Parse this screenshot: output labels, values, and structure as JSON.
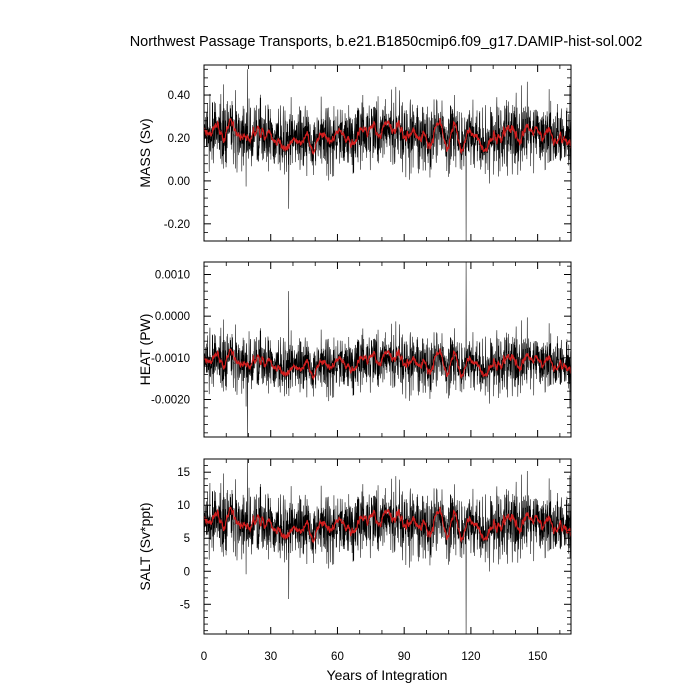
{
  "colors": {
    "series_monthly": "#000000",
    "series_smoothed": "#d21e1e",
    "axis": "#000000",
    "background": "#ffffff"
  },
  "chart_data": {
    "title": "Northwest Passage Transports, b.e21.B1850cmip6.f09_g17.DAMIP-hist-sol.002",
    "xlabel": "Years of Integration",
    "x_ticks": [
      0,
      30,
      60,
      90,
      120,
      150
    ],
    "xlim": [
      0,
      165
    ],
    "grid": false,
    "panels": [
      {
        "type": "line",
        "ylabel": "MASS (Sv)",
        "ylim": [
          -0.28,
          0.54
        ],
        "y_ticks": [
          -0.2,
          0.0,
          0.2,
          0.4
        ],
        "y_tick_labels": [
          "-0.20",
          "0.00",
          "0.20",
          "0.40"
        ],
        "baseline": 0.21,
        "noise_std": 0.075,
        "smooth_amplitude": 0.03,
        "spikes": [
          {
            "x": 117.8,
            "y": -0.28
          },
          {
            "x": 38.1,
            "y": -0.13
          },
          {
            "x": 19.6,
            "y": 0.52
          },
          {
            "x": 164.5,
            "y": 0.45
          }
        ]
      },
      {
        "type": "line",
        "ylabel": "HEAT (PW)",
        "ylim": [
          -0.0029,
          0.0013
        ],
        "y_ticks": [
          -0.002,
          -0.001,
          0.0,
          0.001
        ],
        "y_tick_labels": [
          "-0.0020",
          "-0.0010",
          "0.0000",
          "0.0010"
        ],
        "baseline": -0.00113,
        "noise_std": 0.00033,
        "smooth_amplitude": 0.00012,
        "spikes": [
          {
            "x": 117.8,
            "y": 0.0013
          },
          {
            "x": 38.1,
            "y": 0.0006
          },
          {
            "x": 19.6,
            "y": -0.0029
          },
          {
            "x": 164.5,
            "y": -0.0022
          }
        ]
      },
      {
        "type": "line",
        "ylabel": "SALT (Sv*ppt)",
        "ylim": [
          -9.5,
          17
        ],
        "y_ticks": [
          -5,
          0,
          5,
          10,
          15
        ],
        "y_tick_labels": [
          "-5",
          "0",
          "5",
          "10",
          "15"
        ],
        "baseline": 7.1,
        "noise_std": 2.4,
        "smooth_amplitude": 1.0,
        "spikes": [
          {
            "x": 117.8,
            "y": -9.5
          },
          {
            "x": 38.1,
            "y": -4.2
          },
          {
            "x": 19.6,
            "y": 17
          },
          {
            "x": 164.5,
            "y": 14.5
          }
        ]
      }
    ]
  }
}
